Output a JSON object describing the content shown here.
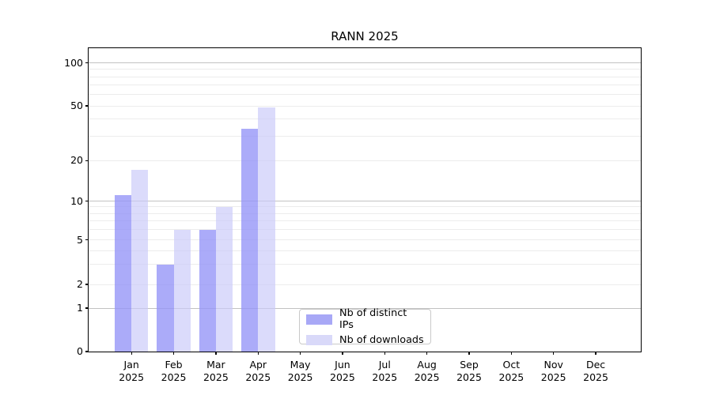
{
  "title": "RANN 2025",
  "colors": {
    "grid_minor": "#ececec",
    "grid_major": "#c2c2c2",
    "axis": "#000000",
    "text": "#000000",
    "background": "#ffffff"
  },
  "chart_data": {
    "type": "bar",
    "title": "RANN 2025",
    "x": {
      "months": [
        "Jan",
        "Feb",
        "Mar",
        "Apr",
        "May",
        "Jun",
        "Jul",
        "Aug",
        "Sep",
        "Oct",
        "Nov",
        "Dec"
      ],
      "year": "2025"
    },
    "y_ticks": [
      0,
      1,
      2,
      5,
      10,
      20,
      50,
      100
    ],
    "y_scale": "asinh-like log (ticks 0,1,2,5,10,20,50,100; log-spaced above 1, compressed 0-1)",
    "ylim": [
      0,
      100
    ],
    "grid": "on",
    "major_grid_values": [
      1,
      10,
      100
    ],
    "minor_grid_values": [
      2,
      3,
      4,
      5,
      6,
      7,
      8,
      9,
      20,
      30,
      40,
      50,
      60,
      70,
      80,
      90
    ],
    "series": [
      {
        "name": "Nb of distinct IPs",
        "color": "rgba(148,148,247,0.78)",
        "legend_color": "#a8a8f6",
        "values": [
          11,
          3,
          6,
          34,
          0,
          0,
          0,
          0,
          0,
          0,
          0,
          0
        ]
      },
      {
        "name": "Nb of downloads",
        "color": "rgba(202,202,249,0.68)",
        "legend_color": "#d9d9f9",
        "values": [
          17,
          6,
          9,
          49,
          0,
          0,
          0,
          0,
          0,
          0,
          0,
          0
        ]
      }
    ],
    "legend_position": "lower center"
  }
}
